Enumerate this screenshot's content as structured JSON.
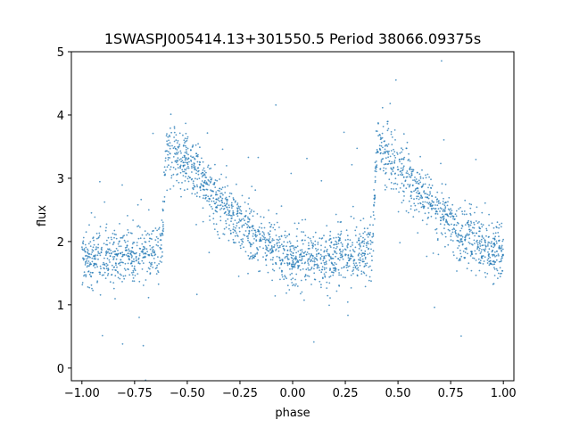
{
  "chart_data": {
    "type": "scatter",
    "title": "1SWASPJ005414.13+301550.5 Period 38066.09375s",
    "xlabel": "phase",
    "ylabel": "flux",
    "xlim": [
      -1.05,
      1.05
    ],
    "ylim": [
      -0.2,
      5.0
    ],
    "x_ticks": [
      -1.0,
      -0.75,
      -0.5,
      -0.25,
      0.0,
      0.25,
      0.5,
      0.75,
      1.0
    ],
    "x_tick_labels": [
      "−1.00",
      "−0.75",
      "−0.50",
      "−0.25",
      "0.00",
      "0.25",
      "0.50",
      "0.75",
      "1.00"
    ],
    "y_ticks": [
      0,
      1,
      2,
      3,
      4,
      5
    ],
    "y_tick_labels": [
      "0",
      "1",
      "2",
      "3",
      "4",
      "5"
    ],
    "grid": false,
    "legend": "none",
    "point_color": "#1f77b4",
    "series": [
      {
        "phase_profile": [
          {
            "x": -1.0,
            "y": 1.75
          },
          {
            "x": -0.9,
            "y": 1.72
          },
          {
            "x": -0.8,
            "y": 1.74
          },
          {
            "x": -0.7,
            "y": 1.8
          },
          {
            "x": -0.62,
            "y": 1.9
          },
          {
            "x": -0.6,
            "y": 3.5
          },
          {
            "x": -0.5,
            "y": 3.25
          },
          {
            "x": -0.4,
            "y": 2.8
          },
          {
            "x": -0.3,
            "y": 2.45
          },
          {
            "x": -0.2,
            "y": 2.15
          },
          {
            "x": -0.1,
            "y": 1.9
          },
          {
            "x": 0.0,
            "y": 1.75
          },
          {
            "x": 0.1,
            "y": 1.72
          },
          {
            "x": 0.2,
            "y": 1.74
          },
          {
            "x": 0.3,
            "y": 1.8
          },
          {
            "x": 0.38,
            "y": 1.9
          },
          {
            "x": 0.4,
            "y": 3.5
          },
          {
            "x": 0.5,
            "y": 3.25
          },
          {
            "x": 0.6,
            "y": 2.8
          },
          {
            "x": 0.7,
            "y": 2.45
          },
          {
            "x": 0.8,
            "y": 2.15
          },
          {
            "x": 0.9,
            "y": 1.9
          },
          {
            "x": 1.0,
            "y": 1.75
          }
        ],
        "scatter_sigma": 0.22
      }
    ]
  }
}
